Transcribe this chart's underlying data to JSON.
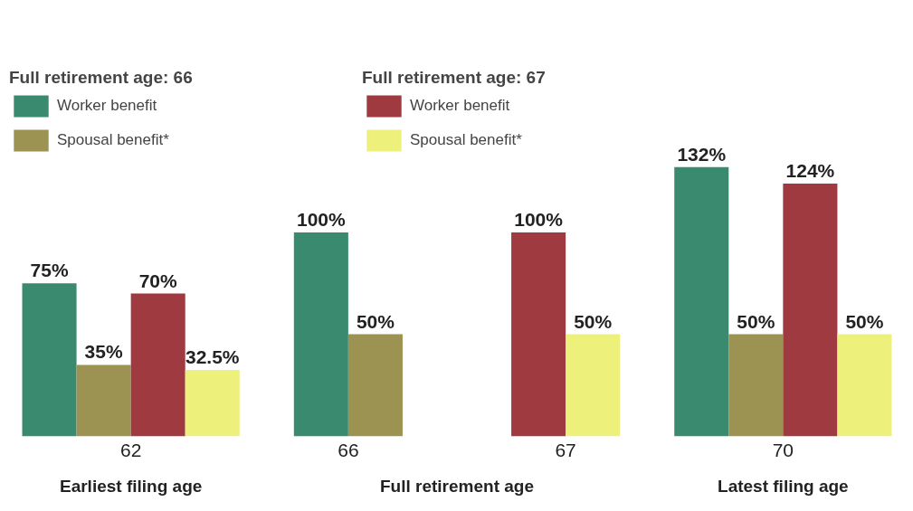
{
  "chart_data": {
    "type": "bar",
    "legend_title": "Full retirement age: 66",
    "categories": [
      "62",
      "66",
      "67",
      "70"
    ],
    "series": [
      {
        "name": "Worker benefit",
        "color": "#3a8a70",
        "values": [
          75,
          100,
          null,
          132
        ],
        "value_labels": [
          "75%",
          "100%",
          null,
          "132%"
        ]
      },
      {
        "name": "Spousal benefit*",
        "color": "#9c9352",
        "values": [
          35,
          50,
          null,
          50
        ],
        "value_labels": [
          "35%",
          "50%",
          null,
          "50%"
        ]
      },
      {
        "name": "Worker benefit",
        "color": "#9e3a40",
        "values": [
          70,
          null,
          100,
          124
        ],
        "value_labels": [
          "70%",
          null,
          "100%",
          "124%"
        ]
      },
      {
        "name": "Spousal benefit*",
        "color": "#eef07c",
        "values": [
          32.5,
          null,
          50,
          50
        ],
        "value_labels": [
          "32.5%",
          null,
          "50%",
          "50%"
        ]
      }
    ],
    "annotations": [
      "Full retirement age: 67",
      "Earliest filing age",
      "Full retirement age",
      "Latest filing age"
    ],
    "legend": "top left",
    "grid": false
  }
}
